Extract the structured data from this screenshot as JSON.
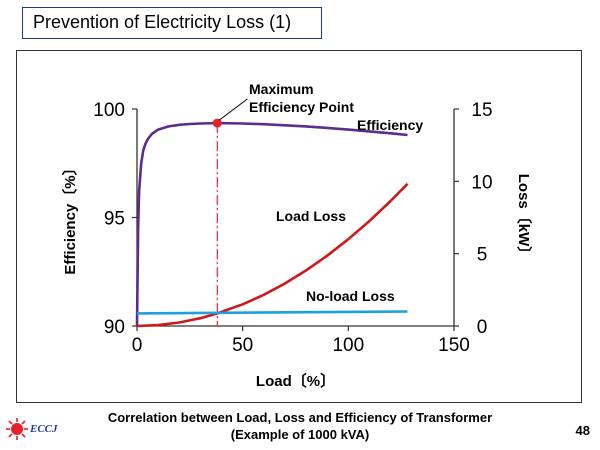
{
  "slide": {
    "title": "Prevention of Electricity Loss (1)",
    "caption_line1": "Correlation between Load, Loss and Efficiency of Transformer",
    "caption_line2": "(Example of 1000 kVA)",
    "page_number": "48",
    "logo_text": "ECCJ"
  },
  "chart_data": {
    "type": "line",
    "xlabel": "Load〔%〕",
    "ylabel_left": "Efficiency〔%〕",
    "ylabel_right": "Loss〔kW〕",
    "xlim": [
      0,
      150
    ],
    "ylim_left": [
      90,
      100
    ],
    "ylim_right": [
      0,
      15
    ],
    "x_ticks": [
      0,
      50,
      100,
      150
    ],
    "y_left_ticks": [
      90,
      95,
      100
    ],
    "y_right_ticks": [
      0,
      5,
      10,
      15
    ],
    "grid": false,
    "series": [
      {
        "name": "Efficiency",
        "axis": "left",
        "color": "#5b2d8e",
        "x": [
          0,
          0.5,
          1,
          2,
          3,
          4,
          5,
          7,
          10,
          15,
          20,
          25,
          30,
          38,
          50,
          60,
          70,
          80,
          90,
          100,
          110,
          120,
          128
        ],
        "y": [
          90.0,
          94.4,
          96.2,
          97.5,
          98.1,
          98.4,
          98.6,
          98.85,
          99.05,
          99.2,
          99.27,
          99.31,
          99.33,
          99.35,
          99.33,
          99.3,
          99.25,
          99.2,
          99.13,
          99.05,
          98.97,
          98.88,
          98.8
        ]
      },
      {
        "name": "Load Loss",
        "axis": "right",
        "color": "#cc1a1a",
        "x": [
          0,
          10,
          20,
          30,
          38,
          50,
          60,
          70,
          80,
          90,
          100,
          110,
          120,
          128
        ],
        "y": [
          0.0,
          0.06,
          0.24,
          0.54,
          0.87,
          1.5,
          2.16,
          2.94,
          3.84,
          4.86,
          6.0,
          7.26,
          8.64,
          9.83
        ]
      },
      {
        "name": "No-load Loss",
        "axis": "right",
        "color": "#1ea0dc",
        "x": [
          0,
          128
        ],
        "y": [
          0.87,
          1.0
        ]
      }
    ],
    "annotations": {
      "max_point_label_line1": "Maximum",
      "max_point_label_line2": "Efficiency Point",
      "max_point_x": 38,
      "max_point_y": 99.35,
      "max_point_color": "#e8202a"
    }
  }
}
